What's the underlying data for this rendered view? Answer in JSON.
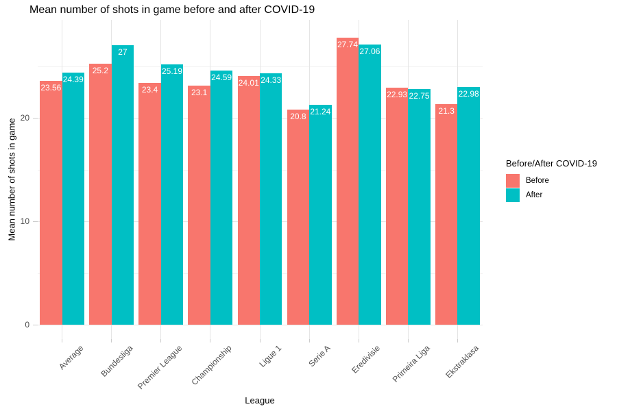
{
  "chart_data": {
    "type": "bar",
    "title": "Mean number of shots in game before and after COVID-19",
    "xlabel": "League",
    "ylabel": "Mean number of shots in game",
    "categories": [
      "Average",
      "Bundesliga",
      "Premier League",
      "Championship",
      "Ligue 1",
      "Serie A",
      "Eredivisie",
      "Primeira Liga",
      "Ekstraklasa"
    ],
    "series": [
      {
        "name": "Before",
        "color": "#F8766D",
        "values": [
          23.56,
          25.2,
          23.4,
          23.1,
          24.01,
          20.8,
          27.74,
          22.93,
          21.3
        ],
        "labels": [
          "23.56",
          "25.2",
          "23.4",
          "23.1",
          "24.01",
          "20.8",
          "27.74",
          "22.93",
          "21.3"
        ]
      },
      {
        "name": "After",
        "color": "#00BFC4",
        "values": [
          24.39,
          27,
          25.19,
          24.59,
          24.33,
          21.24,
          27.06,
          22.75,
          22.98
        ],
        "labels": [
          "24.39",
          "27",
          "25.19",
          "24.59",
          "24.33",
          "21.24",
          "27.06",
          "22.75",
          "22.98"
        ]
      }
    ],
    "ylim": [
      0,
      29.5
    ],
    "yticks": [
      0,
      10,
      20
    ],
    "yticks_minor": [
      5,
      15,
      25
    ],
    "grid": true,
    "legend": {
      "title": "Before/After COVID-19",
      "position": "right",
      "items": [
        {
          "label": "Before",
          "color": "#F8766D"
        },
        {
          "label": "After",
          "color": "#00BFC4"
        }
      ]
    },
    "value_labels": {
      "color": "#FFFFFF",
      "position": "inside-top"
    },
    "style": {
      "background": "#FFFFFF",
      "grid_color_major": "#E5E5E5",
      "grid_color_minor": "#F2F2F2",
      "tick_label_color": "#4D4D4D"
    }
  }
}
